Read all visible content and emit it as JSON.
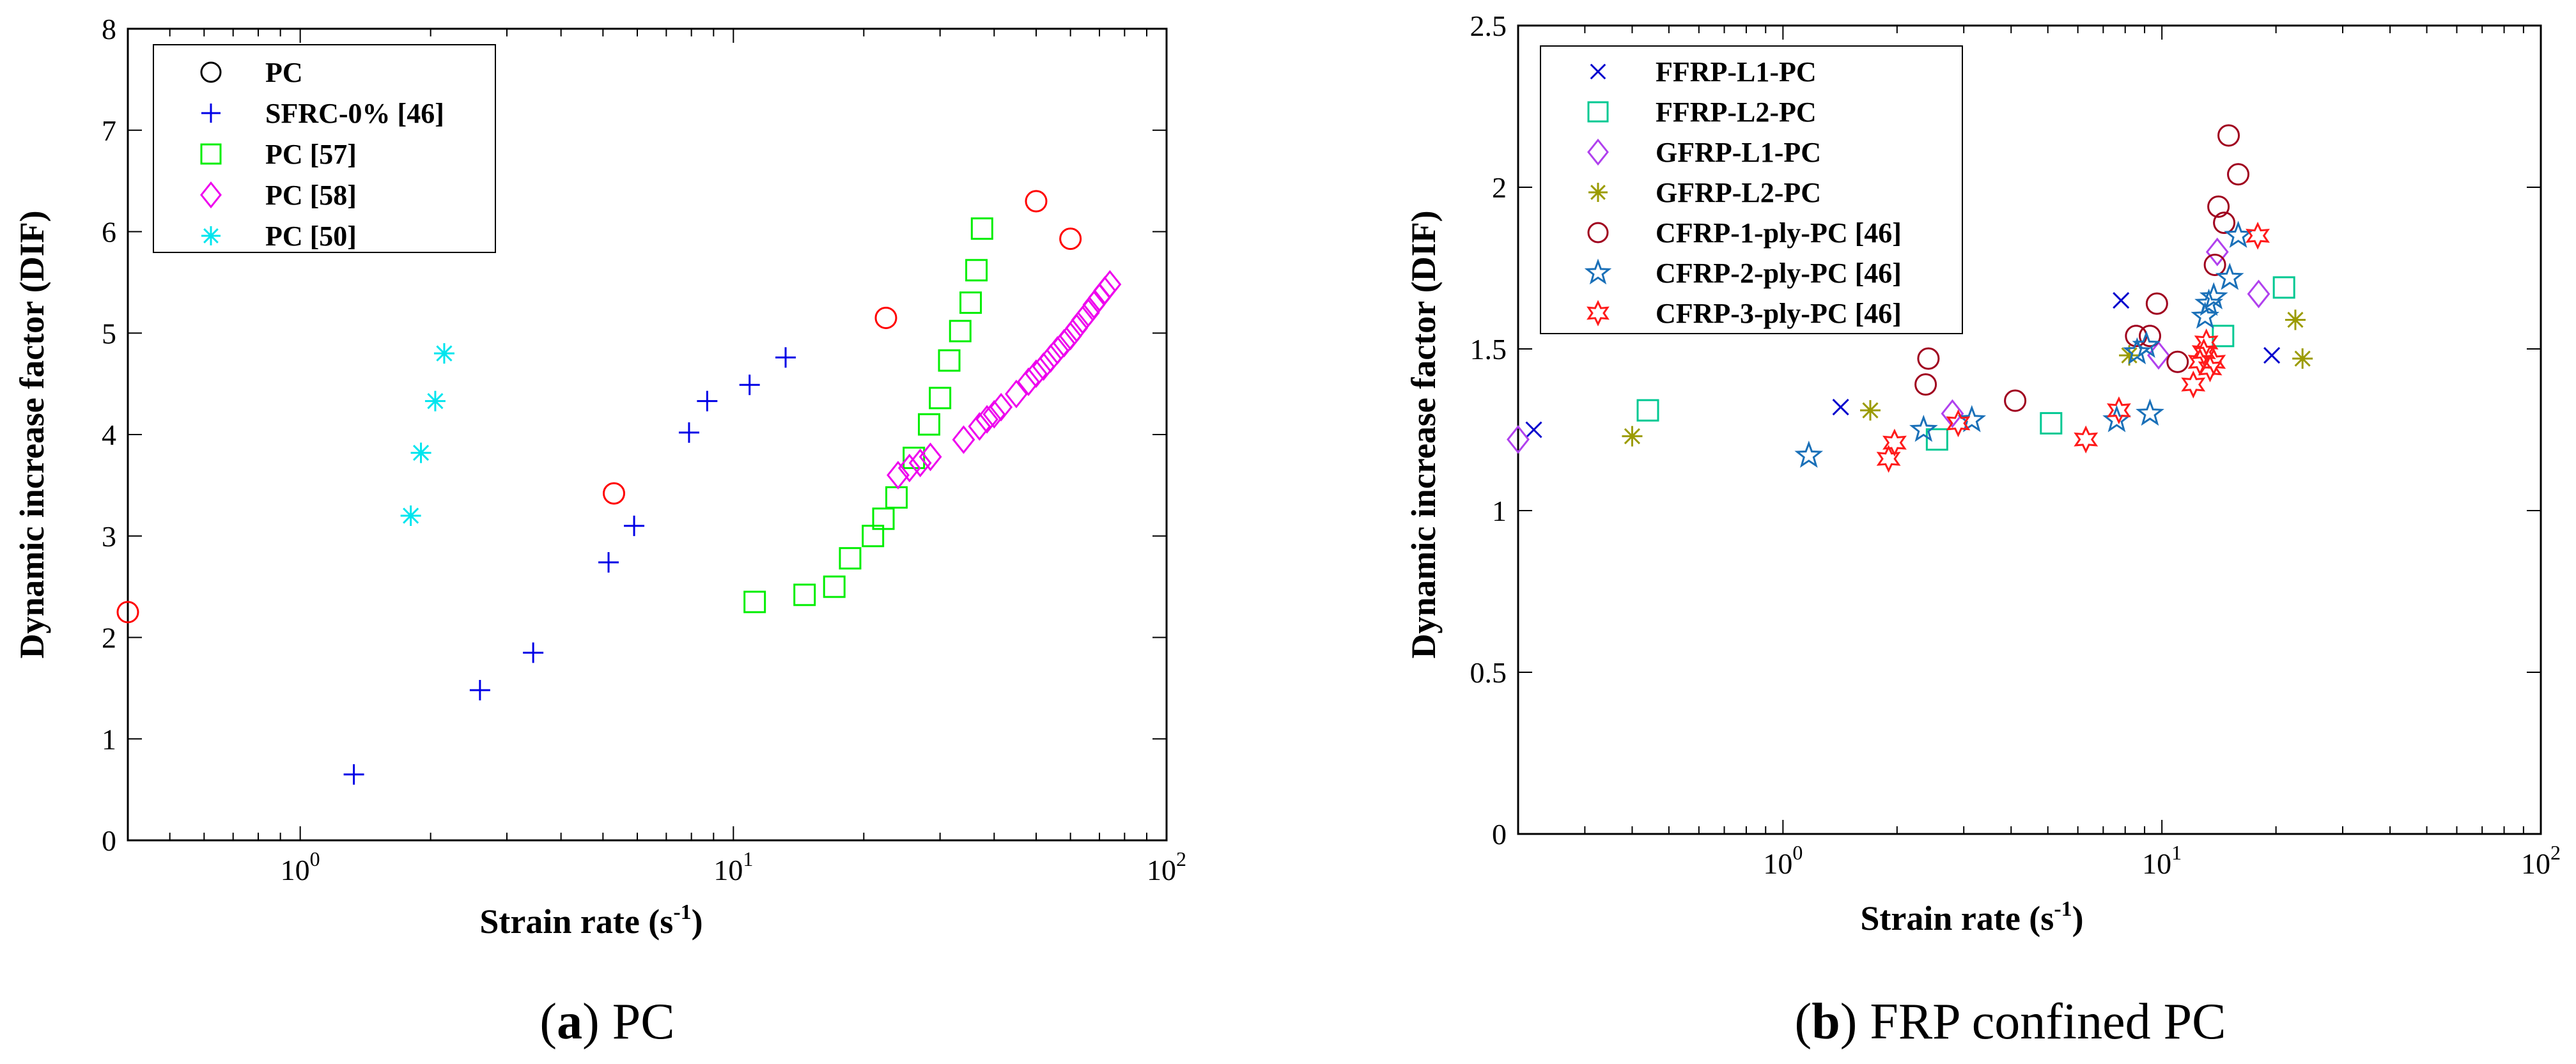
{
  "chart_data": [
    {
      "type": "scatter",
      "panel": "a",
      "caption_letter": "a",
      "caption_text": "PC",
      "xscale": "log",
      "xlim": [
        0.4,
        100
      ],
      "ylim": [
        0,
        8
      ],
      "xticks": [
        {
          "value": 1,
          "base": "10",
          "exp": "0"
        },
        {
          "value": 10,
          "base": "10",
          "exp": "1"
        },
        {
          "value": 100,
          "base": "10",
          "exp": "2"
        }
      ],
      "yticks": [
        "0",
        "1",
        "2",
        "3",
        "4",
        "5",
        "6",
        "7",
        "8"
      ],
      "xlabel": {
        "main": "Strain rate (s",
        "sup": "-1",
        "tail": ")"
      },
      "ylabel": "Dynamic increase factor (DIF)",
      "legend_position": "top-left",
      "series": [
        {
          "name": "PC",
          "marker": "circle",
          "legend_color": "#000000",
          "color": "#ff0000",
          "x": [
            0.4,
            5.3,
            22.5,
            50,
            60
          ],
          "y": [
            2.25,
            3.42,
            5.15,
            6.3,
            5.93
          ]
        },
        {
          "name": "SFRC-0% [46]",
          "marker": "plus",
          "color": "#0000e6",
          "x": [
            1.33,
            2.6,
            3.45,
            5.15,
            5.9,
            7.9,
            8.7,
            10.9,
            13.2
          ],
          "y": [
            0.65,
            1.48,
            1.85,
            2.74,
            3.1,
            4.02,
            4.33,
            4.49,
            4.76
          ]
        },
        {
          "name": "PC [57]",
          "marker": "square",
          "color": "#00ee00",
          "x": [
            11.2,
            14.6,
            17.1,
            18.6,
            21.0,
            22.2,
            23.8,
            26.1,
            28.3,
            30.0,
            31.5,
            33.4,
            35.3,
            36.4,
            37.5
          ],
          "y": [
            2.35,
            2.42,
            2.5,
            2.78,
            3.0,
            3.17,
            3.38,
            3.77,
            4.1,
            4.36,
            4.73,
            5.02,
            5.3,
            5.62,
            6.03
          ]
        },
        {
          "name": "PC [58]",
          "marker": "diamond",
          "color": "#ee00ee",
          "x": [
            24,
            25.5,
            27,
            28.5,
            34,
            37,
            38.5,
            40,
            41.5,
            45,
            48,
            50,
            52,
            54,
            56,
            58,
            60,
            62,
            64,
            66,
            68,
            70,
            72,
            74
          ],
          "y": [
            3.6,
            3.67,
            3.72,
            3.78,
            3.95,
            4.08,
            4.15,
            4.2,
            4.27,
            4.4,
            4.52,
            4.6,
            4.67,
            4.75,
            4.83,
            4.9,
            4.97,
            5.05,
            5.13,
            5.2,
            5.28,
            5.35,
            5.42,
            5.48
          ]
        },
        {
          "name": "PC [50]",
          "marker": "asterisk",
          "color": "#00e5ee",
          "x": [
            1.8,
            1.9,
            2.05,
            2.15
          ],
          "y": [
            3.2,
            3.82,
            4.33,
            4.8
          ]
        }
      ]
    },
    {
      "type": "scatter",
      "panel": "b",
      "caption_letter": "b",
      "caption_text": "FRP confined PC",
      "xscale": "log",
      "xlim": [
        0.2,
        100
      ],
      "ylim": [
        0,
        2.5
      ],
      "xticks": [
        {
          "value": 1,
          "base": "10",
          "exp": "0"
        },
        {
          "value": 10,
          "base": "10",
          "exp": "1"
        },
        {
          "value": 100,
          "base": "10",
          "exp": "2"
        }
      ],
      "yticks": [
        "0",
        "0.5",
        "1",
        "1.5",
        "2",
        "2.5"
      ],
      "xlabel": {
        "main": "Strain rate (s",
        "sup": "-1",
        "tail": ")"
      },
      "ylabel": "Dynamic increase factor (DIF)",
      "legend_position": "top-left",
      "series": [
        {
          "name": "FFRP-L1-PC",
          "marker": "x",
          "color": "#0000cd",
          "x": [
            0.22,
            1.42,
            7.8,
            19.5
          ],
          "y": [
            1.25,
            1.32,
            1.65,
            1.48
          ]
        },
        {
          "name": "FFRP-L2-PC",
          "marker": "square",
          "color": "#00c892",
          "x": [
            0.44,
            2.55,
            5.1,
            14.5,
            21.0
          ],
          "y": [
            1.31,
            1.22,
            1.27,
            1.54,
            1.69
          ]
        },
        {
          "name": "GFRP-L1-PC",
          "marker": "diamond",
          "color": "#b040ee",
          "x": [
            0.2,
            2.8,
            9.8,
            14.0,
            18.0
          ],
          "y": [
            1.22,
            1.3,
            1.48,
            1.8,
            1.67
          ]
        },
        {
          "name": "GFRP-L2-PC",
          "marker": "asterisk",
          "color": "#9b9b00",
          "x": [
            0.4,
            1.7,
            8.2,
            22.5,
            23.5
          ],
          "y": [
            1.23,
            1.31,
            1.48,
            1.59,
            1.47
          ]
        },
        {
          "name": "CFRP-1-ply-PC [46]",
          "marker": "circle",
          "color": "#a0001e",
          "x": [
            2.38,
            2.42,
            4.1,
            8.55,
            9.3,
            9.7,
            11.0,
            13.8,
            14.1,
            14.6,
            15.0,
            15.9
          ],
          "y": [
            1.39,
            1.47,
            1.34,
            1.54,
            1.54,
            1.64,
            1.46,
            1.76,
            1.94,
            1.89,
            2.16,
            2.04
          ]
        },
        {
          "name": "CFRP-2-ply-PC [46]",
          "marker": "star5",
          "color": "#1a70b8",
          "x": [
            1.17,
            2.35,
            3.15,
            7.6,
            8.6,
            9.1,
            9.3,
            13.0,
            13.3,
            13.7,
            15.1,
            15.9
          ],
          "y": [
            1.17,
            1.25,
            1.28,
            1.28,
            1.49,
            1.51,
            1.3,
            1.6,
            1.64,
            1.66,
            1.72,
            1.85
          ]
        },
        {
          "name": "CFRP-3-ply-PC [46]",
          "marker": "star6",
          "color": "#ff1a1a",
          "x": [
            1.9,
            1.97,
            2.9,
            6.3,
            7.7,
            12.1,
            12.6,
            12.9,
            13.1,
            13.4,
            13.7,
            17.9
          ],
          "y": [
            1.16,
            1.21,
            1.27,
            1.22,
            1.31,
            1.39,
            1.46,
            1.49,
            1.52,
            1.44,
            1.46,
            1.85
          ]
        }
      ]
    }
  ]
}
